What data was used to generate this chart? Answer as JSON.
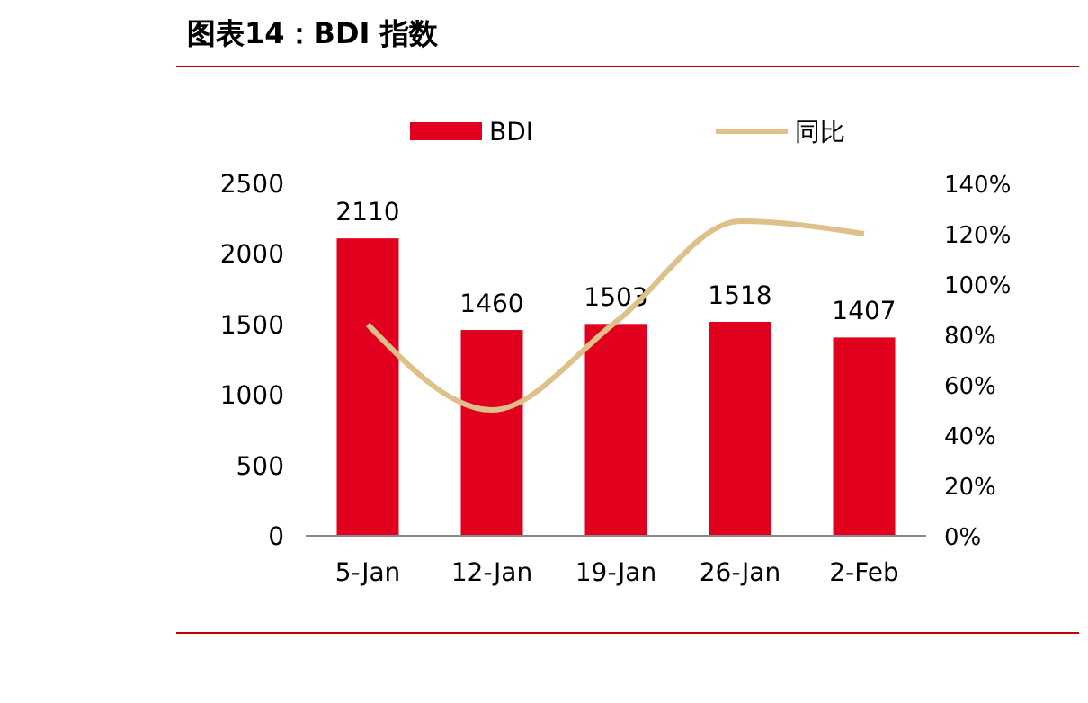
{
  "chart_data": {
    "type": "bar",
    "title": "图表14：BDI 指数",
    "categories": [
      "5-Jan",
      "12-Jan",
      "19-Jan",
      "26-Jan",
      "2-Feb"
    ],
    "series": [
      {
        "name": "BDI",
        "color": "#e1001e",
        "values": [
          2110,
          1460,
          1503,
          1518,
          1407
        ],
        "value_labels": [
          "2110",
          "1460",
          "1503",
          "1518",
          "1407"
        ]
      },
      {
        "name": "同比",
        "type": "line",
        "axis": "y2",
        "color": "#dfc08a",
        "values": [
          84,
          50,
          85,
          125,
          120
        ]
      }
    ],
    "ylim": [
      0,
      2500
    ],
    "yticks": [
      0,
      500,
      1000,
      1500,
      2000,
      2500
    ],
    "y2lim": [
      0,
      140
    ],
    "y2ticks": [
      {
        "value": 0,
        "label": "0%"
      },
      {
        "value": 20,
        "label": "20%"
      },
      {
        "value": 40,
        "label": "40%"
      },
      {
        "value": 60,
        "label": "60%"
      },
      {
        "value": 80,
        "label": "80%"
      },
      {
        "value": 100,
        "label": "100%"
      },
      {
        "value": 120,
        "label": "120%"
      },
      {
        "value": 140,
        "label": "140%"
      }
    ],
    "legend": "top",
    "grid": false,
    "marker": "none",
    "line_style": "solid"
  }
}
